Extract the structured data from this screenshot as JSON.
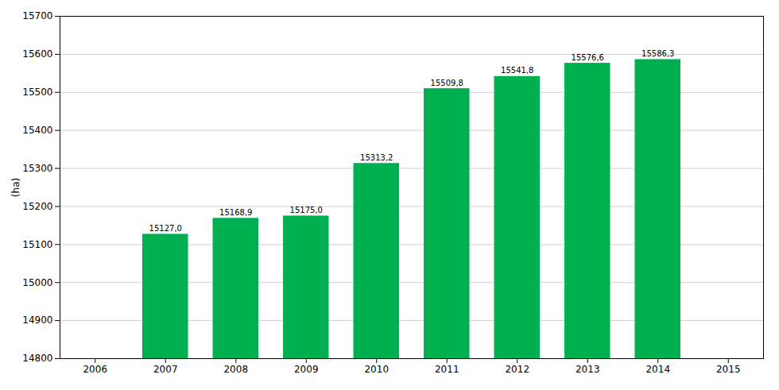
{
  "chart_data": {
    "type": "bar",
    "x": [
      2007,
      2008,
      2009,
      2010,
      2011,
      2012,
      2013,
      2014
    ],
    "values": [
      15127.0,
      15168.9,
      15175.0,
      15313.2,
      15509.8,
      15541.8,
      15576.6,
      15586.3
    ],
    "value_labels": [
      "15127,0",
      "15168,9",
      "15175,0",
      "15313,2",
      "15509,8",
      "15541,8",
      "15576,6",
      "15586,3"
    ],
    "color": "#00b050",
    "ylabel": "(ha)",
    "xlim": [
      2005.5,
      2015.5
    ],
    "xticks": [
      2006,
      2007,
      2008,
      2009,
      2010,
      2011,
      2012,
      2013,
      2014,
      2015
    ],
    "ylim": [
      14800,
      15700
    ],
    "yticks": [
      14800,
      14900,
      15000,
      15100,
      15200,
      15300,
      15400,
      15500,
      15600,
      15700
    ],
    "grid": true,
    "data_labels": true
  }
}
